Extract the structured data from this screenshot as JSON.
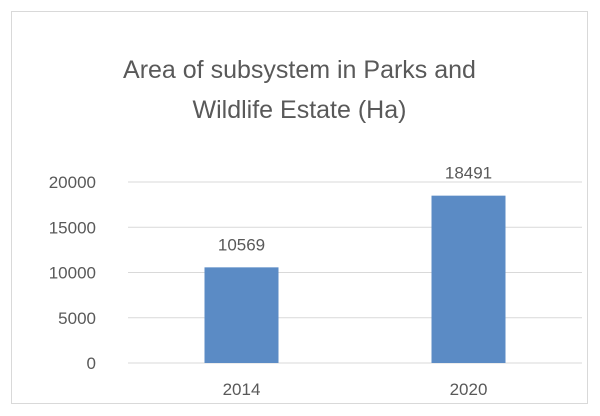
{
  "chart_data": {
    "type": "bar",
    "title": "Area of subsystem in Parks and\nWildlife Estate (Ha)",
    "categories": [
      "2014",
      "2020"
    ],
    "values": [
      10569,
      18491
    ],
    "data_labels": [
      "10569",
      "18491"
    ],
    "ylim": [
      0,
      20000
    ],
    "yticks": [
      0,
      5000,
      10000,
      15000,
      20000
    ],
    "ytick_labels": [
      "0",
      "5000",
      "10000",
      "15000",
      "20000"
    ],
    "grid": true,
    "legend": "none",
    "colors": {
      "bar": "#5b8bc5",
      "grid": "#d9d9d9",
      "text": "#595959",
      "border": "#d9d9d9"
    }
  }
}
